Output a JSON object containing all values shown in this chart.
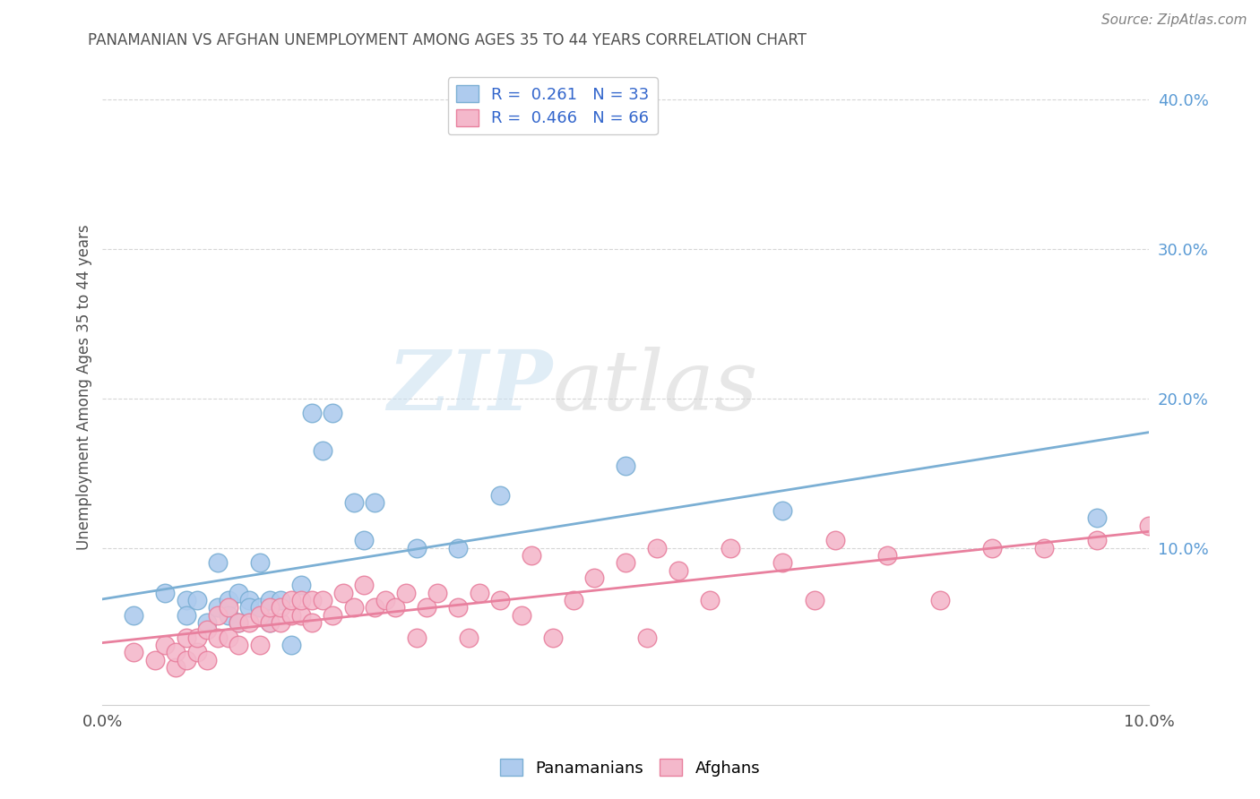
{
  "title": "PANAMANIAN VS AFGHAN UNEMPLOYMENT AMONG AGES 35 TO 44 YEARS CORRELATION CHART",
  "source": "Source: ZipAtlas.com",
  "ylabel": "Unemployment Among Ages 35 to 44 years",
  "xlim": [
    0.0,
    0.1
  ],
  "ylim": [
    -0.005,
    0.42
  ],
  "yticks": [
    0.1,
    0.2,
    0.3,
    0.4
  ],
  "ytick_labels": [
    "10.0%",
    "20.0%",
    "30.0%",
    "40.0%"
  ],
  "xticks": [
    0.0,
    0.02,
    0.04,
    0.06,
    0.08,
    0.1
  ],
  "xtick_labels": [
    "0.0%",
    "",
    "",
    "",
    "",
    "10.0%"
  ],
  "legend_line1": "R =  0.261   N = 33",
  "legend_line2": "R =  0.466   N = 66",
  "panamanian_color": "#aecbee",
  "panamanian_edge": "#7bafd4",
  "afghan_color": "#f4b8cb",
  "afghan_edge": "#e8809e",
  "line_pan_color": "#7bafd4",
  "line_afg_color": "#e8809e",
  "watermark_zip": "ZIP",
  "watermark_atlas": "atlas",
  "background_color": "#ffffff",
  "grid_color": "#cccccc",
  "title_color": "#505050",
  "ylabel_color": "#505050",
  "ytick_color": "#5b9bd5",
  "source_color": "#808080",
  "pan_x": [
    0.003,
    0.006,
    0.008,
    0.008,
    0.009,
    0.01,
    0.011,
    0.011,
    0.012,
    0.012,
    0.013,
    0.013,
    0.014,
    0.014,
    0.015,
    0.015,
    0.016,
    0.016,
    0.017,
    0.018,
    0.019,
    0.02,
    0.021,
    0.022,
    0.024,
    0.025,
    0.026,
    0.03,
    0.034,
    0.038,
    0.05,
    0.065,
    0.095
  ],
  "pan_y": [
    0.055,
    0.07,
    0.065,
    0.055,
    0.065,
    0.05,
    0.09,
    0.06,
    0.065,
    0.055,
    0.07,
    0.05,
    0.065,
    0.06,
    0.09,
    0.06,
    0.065,
    0.05,
    0.065,
    0.035,
    0.075,
    0.19,
    0.165,
    0.19,
    0.13,
    0.105,
    0.13,
    0.1,
    0.1,
    0.135,
    0.155,
    0.125,
    0.12
  ],
  "afg_x": [
    0.003,
    0.005,
    0.006,
    0.007,
    0.007,
    0.008,
    0.008,
    0.009,
    0.009,
    0.01,
    0.01,
    0.011,
    0.011,
    0.012,
    0.012,
    0.013,
    0.013,
    0.014,
    0.015,
    0.015,
    0.016,
    0.016,
    0.017,
    0.017,
    0.018,
    0.018,
    0.019,
    0.019,
    0.02,
    0.02,
    0.021,
    0.022,
    0.023,
    0.024,
    0.025,
    0.026,
    0.027,
    0.028,
    0.029,
    0.03,
    0.031,
    0.032,
    0.034,
    0.035,
    0.036,
    0.038,
    0.04,
    0.041,
    0.043,
    0.045,
    0.047,
    0.05,
    0.052,
    0.053,
    0.055,
    0.058,
    0.06,
    0.065,
    0.068,
    0.07,
    0.075,
    0.08,
    0.085,
    0.09,
    0.095,
    0.1
  ],
  "afg_y": [
    0.03,
    0.025,
    0.035,
    0.02,
    0.03,
    0.025,
    0.04,
    0.03,
    0.04,
    0.025,
    0.045,
    0.04,
    0.055,
    0.04,
    0.06,
    0.035,
    0.05,
    0.05,
    0.035,
    0.055,
    0.05,
    0.06,
    0.05,
    0.06,
    0.055,
    0.065,
    0.055,
    0.065,
    0.05,
    0.065,
    0.065,
    0.055,
    0.07,
    0.06,
    0.075,
    0.06,
    0.065,
    0.06,
    0.07,
    0.04,
    0.06,
    0.07,
    0.06,
    0.04,
    0.07,
    0.065,
    0.055,
    0.095,
    0.04,
    0.065,
    0.08,
    0.09,
    0.04,
    0.1,
    0.085,
    0.065,
    0.1,
    0.09,
    0.065,
    0.105,
    0.095,
    0.065,
    0.1,
    0.1,
    0.105,
    0.115
  ]
}
